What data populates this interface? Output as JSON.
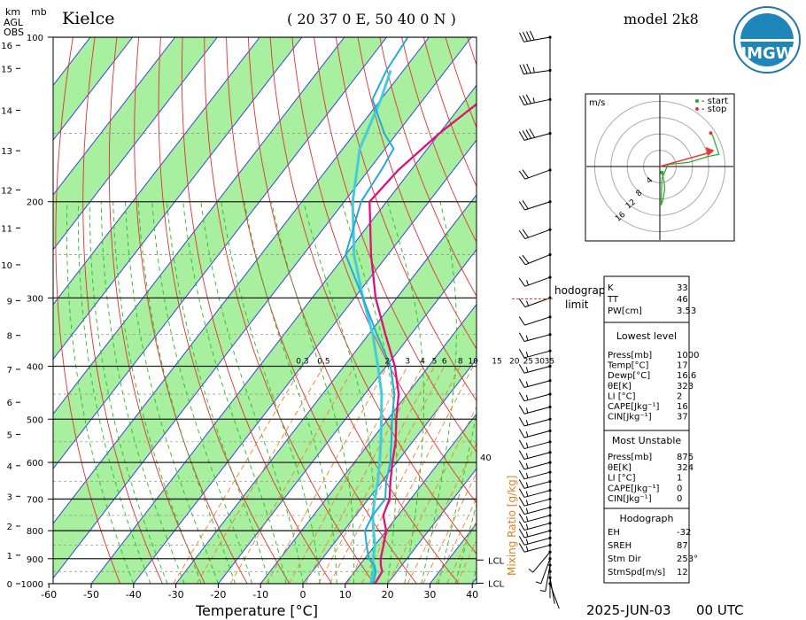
{
  "header": {
    "station": "Kielce",
    "coords": "( 20 37 0 E, 50 40 0 N )",
    "model": "model 2k8",
    "date": "2025-JUN-03",
    "time": "00 UTC",
    "logo_text": "IMGW"
  },
  "colors": {
    "temp": "#dd1177",
    "dew": "#22aadd",
    "parcel": "#44ccdd",
    "green": "#a8f0a0",
    "isotherm": "#3344dd",
    "dry_adiabat": "#e03030",
    "moist_adiabat": "#22bb22",
    "mixing": "#f08020",
    "hodo_line": "#22aa22",
    "hodo_stop": "#ee3333"
  },
  "chart_data": {
    "type": "skew-t",
    "xlabel": "Temperature [°C]",
    "x_ticks": [
      -60,
      -50,
      -40,
      -30,
      -20,
      -10,
      0,
      10,
      20,
      30,
      40
    ],
    "ylabel_left": [
      "km",
      "mb"
    ],
    "ylabel_agl": [
      "AGL",
      "OBS"
    ],
    "pressure_ticks": [
      100,
      200,
      300,
      400,
      500,
      600,
      700,
      800,
      900,
      1000
    ],
    "km_ticks": [
      0,
      1,
      2,
      3,
      4,
      5,
      6,
      7,
      8,
      9,
      10,
      11,
      12,
      13,
      14,
      15,
      16
    ],
    "mixing_ratio_label": "Mixing Ratio [g/kg]",
    "mixing_ratio_values": [
      "0.3",
      "0.5",
      "2",
      "3",
      "4",
      "5",
      "6",
      "8",
      "10",
      "15",
      "20",
      "25",
      "30",
      "35"
    ],
    "side_label": "40",
    "temperature": [
      [
        1000,
        17
      ],
      [
        950,
        16.5
      ],
      [
        925,
        15
      ],
      [
        900,
        13.8
      ],
      [
        850,
        12
      ],
      [
        800,
        10
      ],
      [
        750,
        6.5
      ],
      [
        700,
        5
      ],
      [
        650,
        2
      ],
      [
        600,
        -1
      ],
      [
        550,
        -4
      ],
      [
        500,
        -8
      ],
      [
        450,
        -12
      ],
      [
        400,
        -18
      ],
      [
        350,
        -26
      ],
      [
        300,
        -35
      ],
      [
        250,
        -44
      ],
      [
        200,
        -54
      ],
      [
        175,
        -53
      ],
      [
        150,
        -50
      ],
      [
        130,
        -46
      ],
      [
        115,
        -43
      ],
      [
        100,
        -40
      ]
    ],
    "dewpoint": [
      [
        1000,
        16.6
      ],
      [
        950,
        15
      ],
      [
        925,
        13.5
      ],
      [
        900,
        11
      ],
      [
        850,
        8
      ],
      [
        800,
        5
      ],
      [
        750,
        4
      ],
      [
        700,
        4
      ],
      [
        650,
        1
      ],
      [
        600,
        -1.5
      ],
      [
        550,
        -5
      ],
      [
        500,
        -9
      ],
      [
        450,
        -13
      ],
      [
        400,
        -19
      ],
      [
        350,
        -28
      ],
      [
        300,
        -38
      ],
      [
        250,
        -50
      ],
      [
        200,
        -56
      ],
      [
        175,
        -57
      ],
      [
        160,
        -58
      ],
      [
        150,
        -63
      ],
      [
        130,
        -72
      ],
      [
        115,
        -74
      ],
      [
        100,
        -75
      ]
    ],
    "parcel": [
      [
        1000,
        16
      ],
      [
        950,
        14.5
      ],
      [
        900,
        12
      ],
      [
        850,
        10
      ],
      [
        800,
        7
      ],
      [
        750,
        4
      ],
      [
        700,
        1.5
      ],
      [
        650,
        -1
      ],
      [
        600,
        -4
      ],
      [
        550,
        -7.5
      ],
      [
        500,
        -11.5
      ],
      [
        450,
        -16
      ],
      [
        400,
        -22
      ],
      [
        350,
        -29
      ],
      [
        300,
        -38
      ],
      [
        250,
        -48
      ],
      [
        200,
        -58
      ],
      [
        160,
        -66
      ],
      [
        130,
        -70
      ],
      [
        115,
        -73
      ]
    ],
    "wind_barbs": [
      {
        "p": 100,
        "dir": 260,
        "spd": 40
      },
      {
        "p": 115,
        "dir": 262,
        "spd": 35
      },
      {
        "p": 130,
        "dir": 258,
        "spd": 38
      },
      {
        "p": 150,
        "dir": 255,
        "spd": 40
      },
      {
        "p": 175,
        "dir": 250,
        "spd": 22
      },
      {
        "p": 200,
        "dir": 252,
        "spd": 20
      },
      {
        "p": 225,
        "dir": 250,
        "spd": 20
      },
      {
        "p": 250,
        "dir": 248,
        "spd": 20
      },
      {
        "p": 275,
        "dir": 250,
        "spd": 15
      },
      {
        "p": 300,
        "dir": 250,
        "spd": 15
      },
      {
        "p": 325,
        "dir": 252,
        "spd": 12
      },
      {
        "p": 350,
        "dir": 255,
        "spd": 15
      },
      {
        "p": 375,
        "dir": 255,
        "spd": 15
      },
      {
        "p": 400,
        "dir": 255,
        "spd": 15
      },
      {
        "p": 425,
        "dir": 255,
        "spd": 15
      },
      {
        "p": 450,
        "dir": 255,
        "spd": 15
      },
      {
        "p": 475,
        "dir": 255,
        "spd": 15
      },
      {
        "p": 500,
        "dir": 255,
        "spd": 15
      },
      {
        "p": 525,
        "dir": 255,
        "spd": 15
      },
      {
        "p": 550,
        "dir": 255,
        "spd": 15
      },
      {
        "p": 575,
        "dir": 255,
        "spd": 15
      },
      {
        "p": 600,
        "dir": 255,
        "spd": 15
      },
      {
        "p": 625,
        "dir": 255,
        "spd": 15
      },
      {
        "p": 650,
        "dir": 255,
        "spd": 15
      },
      {
        "p": 675,
        "dir": 255,
        "spd": 15
      },
      {
        "p": 700,
        "dir": 255,
        "spd": 15
      },
      {
        "p": 725,
        "dir": 255,
        "spd": 15
      },
      {
        "p": 750,
        "dir": 255,
        "spd": 15
      },
      {
        "p": 775,
        "dir": 255,
        "spd": 15
      },
      {
        "p": 800,
        "dir": 255,
        "spd": 15
      },
      {
        "p": 825,
        "dir": 255,
        "spd": 15
      },
      {
        "p": 850,
        "dir": 255,
        "spd": 15
      },
      {
        "p": 875,
        "dir": 220,
        "spd": 8
      },
      {
        "p": 900,
        "dir": 200,
        "spd": 7
      },
      {
        "p": 925,
        "dir": 190,
        "spd": 5
      },
      {
        "p": 950,
        "dir": 180,
        "spd": 3
      },
      {
        "p": 975,
        "dir": 170,
        "spd": 2
      },
      {
        "p": 1000,
        "dir": 160,
        "spd": 2
      }
    ],
    "lcl_levels": [
      {
        "p": 905,
        "label": "LCL"
      },
      {
        "p": 998,
        "label": "LCL"
      }
    ],
    "hodograph": {
      "unit": "m/s",
      "legend_start": "- start",
      "legend_stop": "- stop",
      "ring_labels": [
        "4",
        "8",
        "12",
        "16"
      ],
      "points": [
        [
          0.5,
          -1.5
        ],
        [
          1.0,
          -3.5
        ],
        [
          1.2,
          -5.5
        ],
        [
          0.8,
          -8
        ],
        [
          0.3,
          -9.5
        ],
        [
          0.5,
          -3
        ],
        [
          2,
          0.5
        ],
        [
          7,
          1
        ],
        [
          12,
          2.5
        ],
        [
          14.5,
          3
        ],
        [
          14,
          4.5
        ],
        [
          13.5,
          6
        ],
        [
          13,
          7.5
        ],
        [
          12.5,
          8.2
        ]
      ],
      "storm_motion": [
        12.5,
        3.5
      ]
    },
    "hodograph_limit_label": [
      "hodograph",
      "limit"
    ],
    "indices": {
      "top": [
        {
          "name": "K",
          "value": "33"
        },
        {
          "name": "TT",
          "value": "46"
        },
        {
          "name": "PW[cm]",
          "value": "3.53"
        }
      ],
      "lowest_title": "Lowest level",
      "lowest": [
        {
          "name": "Press[mb]",
          "value": "1000"
        },
        {
          "name": "Temp[°C]",
          "value": "17"
        },
        {
          "name": "Dewp[°C]",
          "value": "16.6"
        },
        {
          "name": "θE[K]",
          "value": "323"
        },
        {
          "name": "LI [°C]",
          "value": "2"
        },
        {
          "name": "CAPE[Jkg⁻¹]",
          "value": "16"
        },
        {
          "name": "CIN[Jkg⁻¹]",
          "value": "37"
        }
      ],
      "unstable_title": "Most Unstable",
      "unstable": [
        {
          "name": "Press[mb]",
          "value": "875"
        },
        {
          "name": "θE[K]",
          "value": "324"
        },
        {
          "name": "LI [°C]",
          "value": "1"
        },
        {
          "name": "CAPE[Jkg⁻¹]",
          "value": "0"
        },
        {
          "name": "CIN[Jkg⁻¹]",
          "value": "0"
        }
      ],
      "hodo_title": "Hodograph",
      "hodo": [
        {
          "name": "EH",
          "value": "-32"
        },
        {
          "name": "SREH",
          "value": "87"
        },
        {
          "name": "Stm Dir",
          "value": "253°"
        },
        {
          "name": "StmSpd[m/s]",
          "value": "12"
        }
      ]
    }
  }
}
